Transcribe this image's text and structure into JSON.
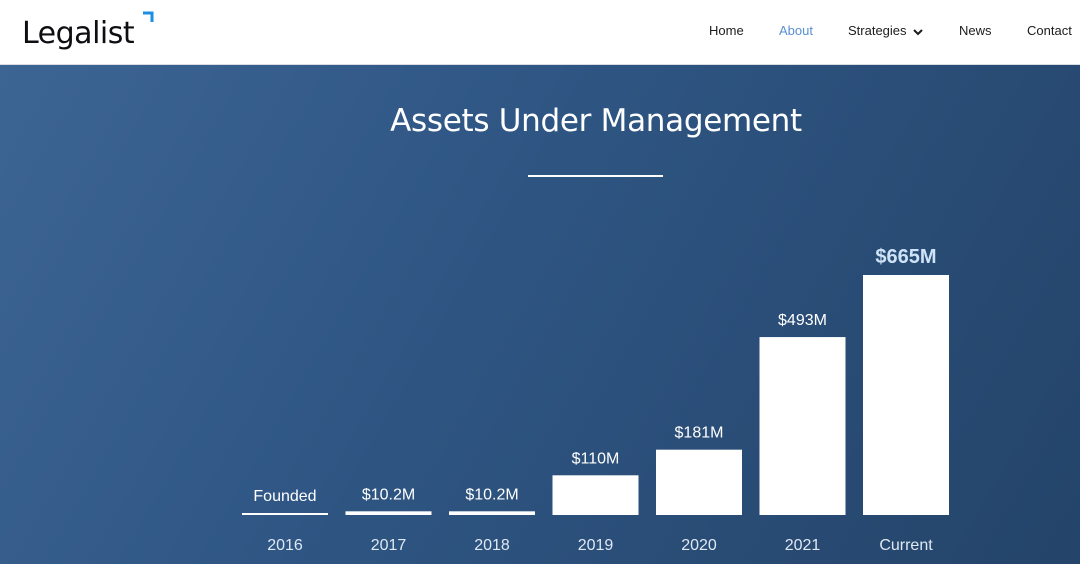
{
  "header": {
    "logo_text": "Legalist",
    "nav": [
      {
        "label": "Home",
        "active": false
      },
      {
        "label": "About",
        "active": true
      },
      {
        "label": "Strategies",
        "active": false,
        "has_dropdown": true
      },
      {
        "label": "News",
        "active": false
      },
      {
        "label": "Contact",
        "active": false
      }
    ]
  },
  "hero": {
    "title": "Assets Under Management"
  },
  "colors": {
    "accent": "#1a8fe3",
    "nav_active": "#5a8fd1",
    "hero_bg": "#2f5684",
    "bar": "#ffffff",
    "highlight_label": "#cfe3f7"
  },
  "chart_data": {
    "type": "bar",
    "categories": [
      "2016",
      "2017",
      "2018",
      "2019",
      "2020",
      "2021",
      "Current"
    ],
    "values": [
      0,
      10.2,
      10.2,
      110,
      181,
      493,
      665
    ],
    "value_labels": [
      "Founded",
      "$10.2M",
      "$10.2M",
      "$110M",
      "$181M",
      "$493M",
      "$665M"
    ],
    "highlight_index": 6,
    "unit": "$M",
    "ylim": [
      0,
      665
    ],
    "grid": false,
    "legend": "none"
  }
}
